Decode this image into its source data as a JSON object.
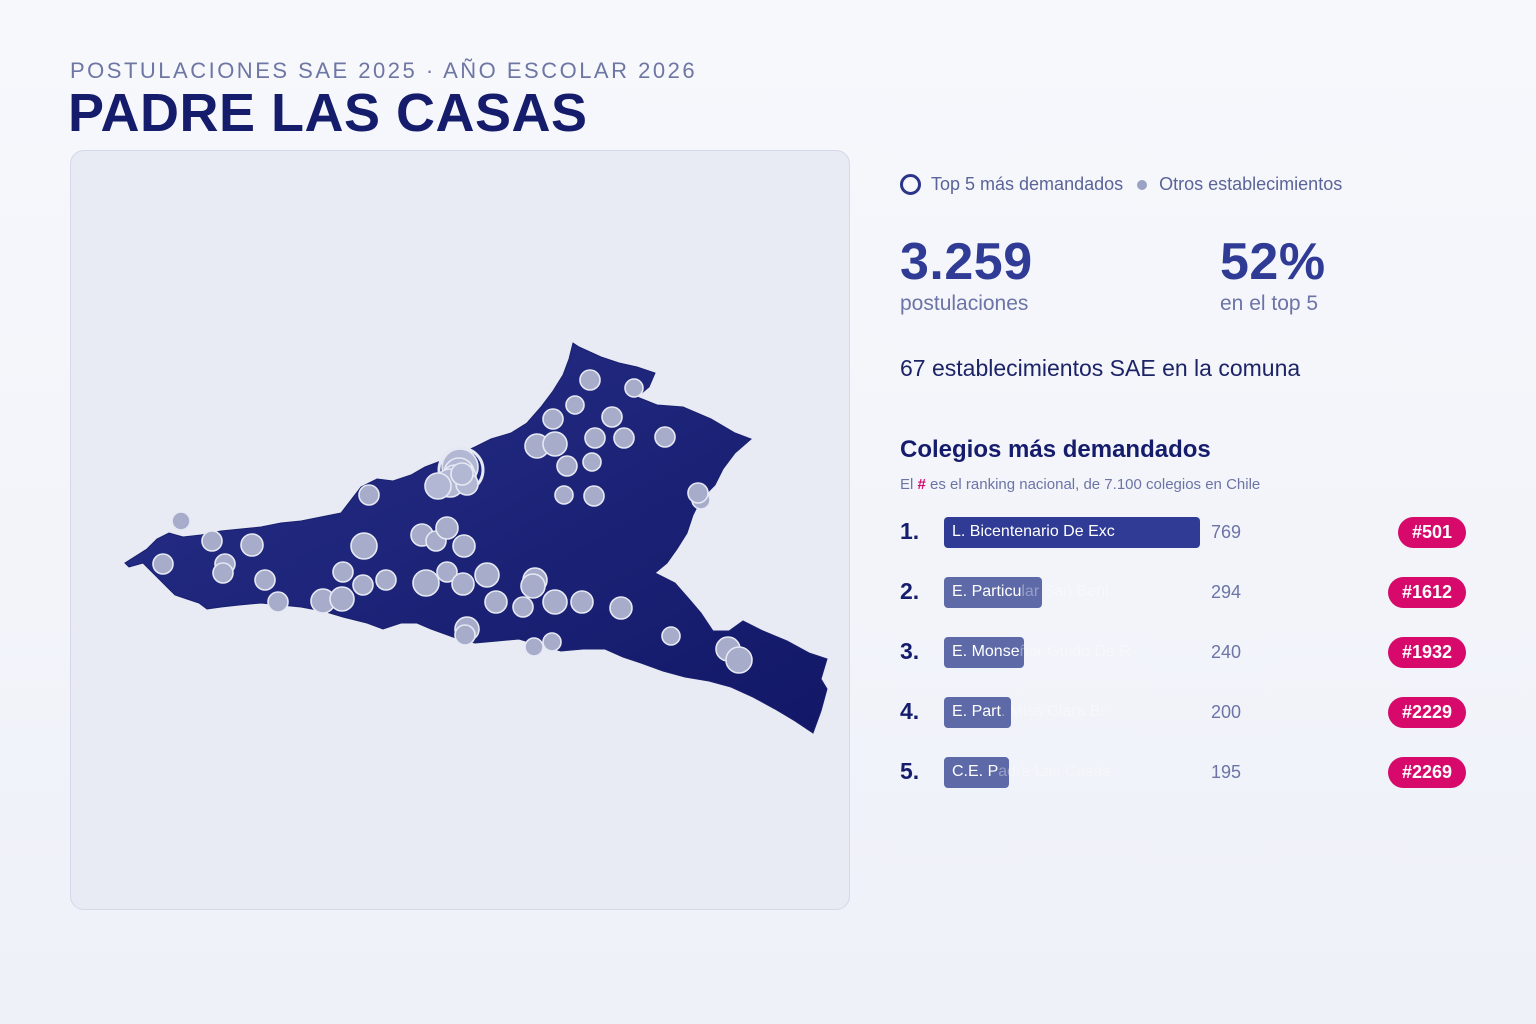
{
  "header": {
    "subtitle": "POSTULACIONES SAE 2025 · AÑO ESCOLAR 2026",
    "title": "PADRE LAS CASAS"
  },
  "legend": {
    "top5_label": "Top 5 más demandados",
    "others_label": "Otros establecimientos"
  },
  "stats": {
    "postulaciones_value": "3.259",
    "postulaciones_label": "postulaciones",
    "top5_share_value": "52%",
    "top5_share_label": "en el top 5",
    "establecimientos_text": "67 establecimientos SAE en la comuna"
  },
  "ranking": {
    "title": "Colegios más demandados",
    "note_prefix": "El",
    "note_hash": "#",
    "note_suffix": "es el ranking nacional, de 7.100 colegios en Chile",
    "items": [
      {
        "rank": "1.",
        "name": "L. Bicentenario De Exc",
        "value": 769,
        "value_label": "769",
        "badge": "#501"
      },
      {
        "rank": "2.",
        "name": "E. Particular San Beni",
        "value": 294,
        "value_label": "294",
        "badge": "#1612"
      },
      {
        "rank": "3.",
        "name": "E. Monseñor Guido De R",
        "value": 240,
        "value_label": "240",
        "badge": "#1932"
      },
      {
        "rank": "4.",
        "name": "E. Part. Miss Clara Br",
        "value": 200,
        "value_label": "200",
        "badge": "#2229"
      },
      {
        "rank": "5.",
        "name": "C.E. Padre Las Casas",
        "value": 195,
        "value_label": "195",
        "badge": "#2269"
      }
    ]
  },
  "colors": {
    "region_fill": "#1c2275",
    "top_bar": "#2f3b94",
    "other_bar": "#5e6aa8",
    "badge": "#d7096b",
    "point_fill": "#a6acc9"
  }
}
